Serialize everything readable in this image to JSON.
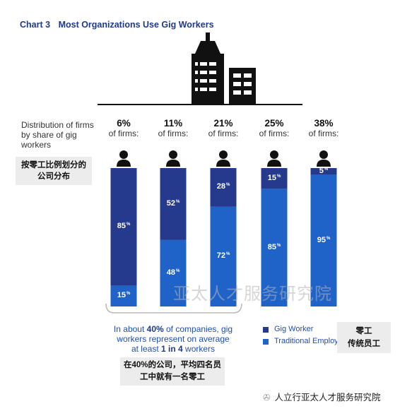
{
  "title": {
    "number": "Chart 3",
    "text": "Most Organizations Use Gig Workers"
  },
  "distribution_label": "Distribution of firms by share of gig workers",
  "distribution_label_cn": "按零工比例划分的公司分布",
  "colors": {
    "gig": "#253a8c",
    "traditional": "#1f63c9",
    "title": "#1f3a8a"
  },
  "chart_data": {
    "type": "bar",
    "stacked": true,
    "categories": [
      "6%",
      "11%",
      "21%",
      "25%",
      "38%"
    ],
    "category_sublabel": "of firms:",
    "series": [
      {
        "name": "Gig Worker",
        "values": [
          85,
          52,
          28,
          15,
          5
        ]
      },
      {
        "name": "Traditional Employee",
        "values": [
          15,
          48,
          72,
          85,
          95
        ]
      }
    ],
    "value_unit": "%",
    "ylim": [
      0,
      100
    ],
    "legend": "bottom-right",
    "legend_cn": [
      "零工",
      "传统员工"
    ]
  },
  "note": {
    "pre": "In about ",
    "bold1": "40%",
    "mid": " of companies, gig workers represent on average at least ",
    "bold2": "1 in 4",
    "post": " workers"
  },
  "note_cn": "在40%的公司，平均四名员工中就有一名零工",
  "watermark": "亚太人才服务研究院",
  "wechat_label": "人立行亚太人才服务研究院",
  "icons": {
    "building": "building-icon",
    "person": "person-icon",
    "wechat": "wechat-icon"
  }
}
